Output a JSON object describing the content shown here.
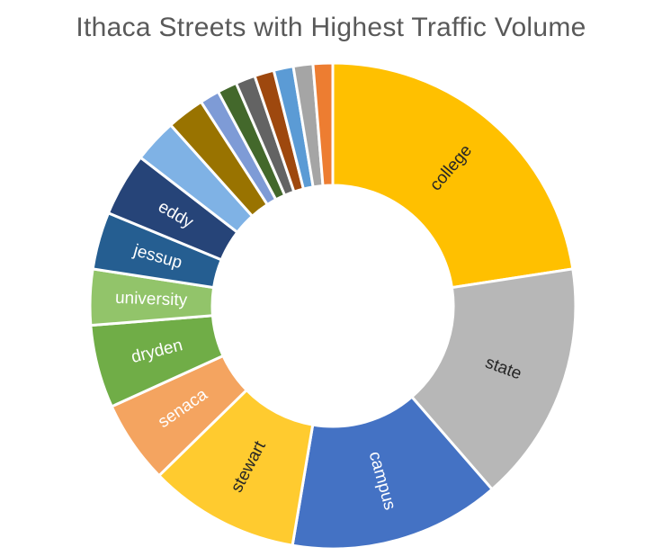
{
  "chart_data": {
    "type": "pie",
    "title": "Ithaca Streets with Highest Traffic Volume",
    "slices": [
      {
        "label": "college",
        "value": 22.5,
        "color": "#FFC000",
        "text_color": "#262626"
      },
      {
        "label": "state",
        "value": 16.0,
        "color": "#B7B7B7",
        "text_color": "#262626"
      },
      {
        "label": "campus",
        "value": 14.0,
        "color": "#4472C4",
        "text_color": "#ffffff"
      },
      {
        "label": "stewart",
        "value": 10.0,
        "color": "#FFCB2F",
        "text_color": "#262626"
      },
      {
        "label": "senaca",
        "value": 5.5,
        "color": "#F4A460",
        "text_color": "#ffffff"
      },
      {
        "label": "dryden",
        "value": 5.5,
        "color": "#70AD47",
        "text_color": "#ffffff"
      },
      {
        "label": "university",
        "value": 3.7,
        "color": "#92C46A",
        "text_color": "#ffffff"
      },
      {
        "label": "jessup",
        "value": 3.8,
        "color": "#255E91",
        "text_color": "#ffffff"
      },
      {
        "label": "eddy",
        "value": 4.2,
        "color": "#264478",
        "text_color": "#ffffff"
      },
      {
        "label": "",
        "value": 2.9,
        "color": "#7FB2E5",
        "text_color": "#ffffff"
      },
      {
        "label": "",
        "value": 2.5,
        "color": "#997300",
        "text_color": "#ffffff"
      },
      {
        "label": "",
        "value": 1.3,
        "color": "#7E9BD6",
        "text_color": "#ffffff"
      },
      {
        "label": "",
        "value": 1.3,
        "color": "#43682B",
        "text_color": "#ffffff"
      },
      {
        "label": "",
        "value": 1.3,
        "color": "#636363",
        "text_color": "#ffffff"
      },
      {
        "label": "",
        "value": 1.3,
        "color": "#9E480E",
        "text_color": "#ffffff"
      },
      {
        "label": "",
        "value": 1.3,
        "color": "#5B9BD5",
        "text_color": "#ffffff"
      },
      {
        "label": "",
        "value": 1.3,
        "color": "#A5A5A5",
        "text_color": "#ffffff"
      },
      {
        "label": "",
        "value": 1.3,
        "color": "#ED7D31",
        "text_color": "#ffffff"
      }
    ]
  }
}
